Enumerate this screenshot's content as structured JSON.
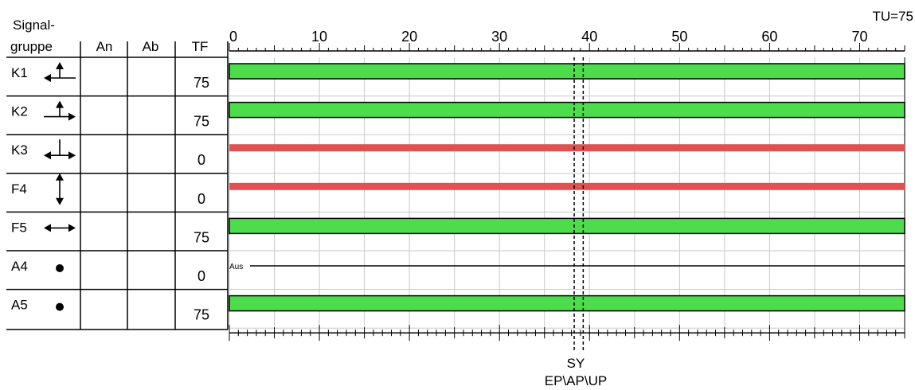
{
  "header": {
    "col_signal": [
      "Signal-",
      "gruppe"
    ],
    "col_an": "An",
    "col_ab": "Ab",
    "col_tf": "TF",
    "cycle_label": "TU=75"
  },
  "axis": {
    "min": 0,
    "max": 75,
    "labeled_ticks": [
      0,
      10,
      20,
      30,
      40,
      50,
      60,
      70
    ]
  },
  "rows": [
    {
      "name": "K1",
      "icon": "arrow-left-up-icon",
      "an": "",
      "ab": "",
      "tf": "75",
      "state": "green"
    },
    {
      "name": "K2",
      "icon": "arrow-right-up-icon",
      "an": "",
      "ab": "",
      "tf": "75",
      "state": "green"
    },
    {
      "name": "K3",
      "icon": "arrow-left-right-up-icon",
      "an": "",
      "ab": "",
      "tf": "0",
      "state": "red"
    },
    {
      "name": "F4",
      "icon": "arrow-up-down-icon",
      "an": "",
      "ab": "",
      "tf": "0",
      "state": "red"
    },
    {
      "name": "F5",
      "icon": "arrow-left-right-icon",
      "an": "",
      "ab": "",
      "tf": "75",
      "state": "green"
    },
    {
      "name": "A4",
      "icon": "dot-icon",
      "an": "",
      "ab": "",
      "tf": "0",
      "state": "off",
      "state_label": "Aus"
    },
    {
      "name": "A5",
      "icon": "dot-icon",
      "an": "",
      "ab": "",
      "tf": "75",
      "state": "green"
    }
  ],
  "markers": {
    "sy_time": 38.3,
    "ep_time": 39.3,
    "sy_label": "SY",
    "footer_label": "EP\\AP\\UP"
  },
  "colors": {
    "green": "#4cdc4c",
    "red": "#e05252",
    "grid": "#c8c8c8"
  }
}
